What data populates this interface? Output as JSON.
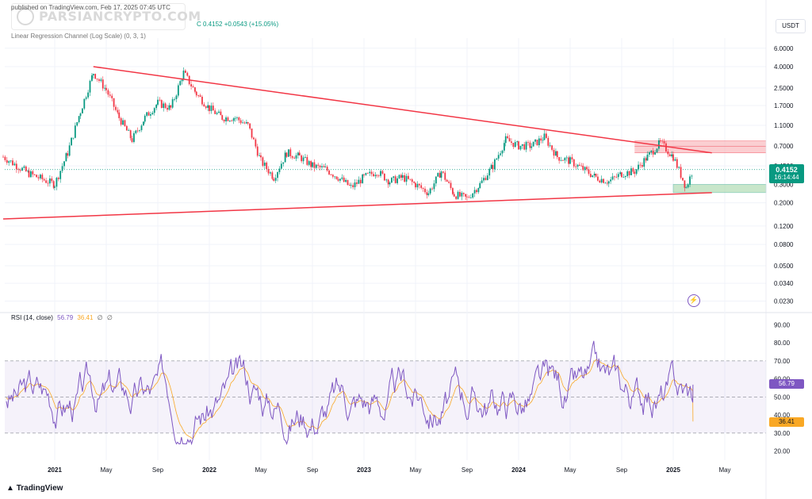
{
  "header": {
    "publish_line": "published on TradingView.com, Feb 17, 2025 07:45 UTC",
    "indicator_line": "Linear Regression Channel (Log Scale) (0, 3, 1)",
    "ohlc_text": "C 0.4152  +0.0543 (+15.05%)",
    "currency_button": "USDT",
    "watermark": "PARSIANCRYPTO.COM",
    "tv_brand": "TradingView"
  },
  "price_tag": {
    "price": "0.4152",
    "countdown": "16:14:44"
  },
  "rsi_legend": {
    "label": "RSI (14, close)",
    "rsi": "56.79",
    "ma": "36.41",
    "a": "∅",
    "b": "∅"
  },
  "rsi_tags": {
    "rsi": "56.79",
    "ma": "36.41"
  },
  "colors": {
    "up": "#089981",
    "down": "#f23645",
    "trendline": "#f23645",
    "rsi": "#7e57c2",
    "rsi_ma": "#f9a825",
    "zone_red": "#f7a5ac",
    "zone_green": "#a5d6a7",
    "grid": "#f0f3fa"
  },
  "chart_data": [
    {
      "type": "candlestick",
      "scale": "log",
      "currency": "USDT",
      "y_ticks": [
        "6.0000",
        "4.0000",
        "2.5000",
        "1.7000",
        "1.1000",
        "0.7000",
        "0.4500",
        "0.3000",
        "0.2000",
        "0.1200",
        "0.0800",
        "0.0500",
        "0.0340",
        "0.0230"
      ],
      "x_ticks": [
        "2021",
        "May",
        "Sep",
        "2022",
        "May",
        "Sep",
        "2023",
        "May",
        "Sep",
        "2024",
        "May",
        "Sep",
        "2025",
        "May"
      ],
      "last_price": 0.4152,
      "approx_close_path": [
        [
          "2020-09",
          0.55
        ],
        [
          "2020-11",
          0.38
        ],
        [
          "2021-01",
          0.3
        ],
        [
          "2021-02",
          0.6
        ],
        [
          "2021-03",
          1.5
        ],
        [
          "2021-04",
          3.5
        ],
        [
          "2021-05",
          2.4
        ],
        [
          "2021-06",
          1.3
        ],
        [
          "2021-07",
          0.8
        ],
        [
          "2021-08",
          1.3
        ],
        [
          "2021-09",
          1.8
        ],
        [
          "2021-10",
          1.6
        ],
        [
          "2021-11",
          3.5
        ],
        [
          "2021-12",
          2.2
        ],
        [
          "2022-01",
          1.6
        ],
        [
          "2022-02",
          1.3
        ],
        [
          "2022-03",
          1.3
        ],
        [
          "2022-04",
          1.1
        ],
        [
          "2022-05",
          0.5
        ],
        [
          "2022-06",
          0.35
        ],
        [
          "2022-07",
          0.6
        ],
        [
          "2022-08",
          0.55
        ],
        [
          "2022-09",
          0.45
        ],
        [
          "2022-10",
          0.42
        ],
        [
          "2022-11",
          0.35
        ],
        [
          "2022-12",
          0.28
        ],
        [
          "2023-01",
          0.35
        ],
        [
          "2023-02",
          0.4
        ],
        [
          "2023-03",
          0.32
        ],
        [
          "2023-04",
          0.35
        ],
        [
          "2023-05",
          0.3
        ],
        [
          "2023-06",
          0.25
        ],
        [
          "2023-07",
          0.4
        ],
        [
          "2023-08",
          0.24
        ],
        [
          "2023-09",
          0.22
        ],
        [
          "2023-10",
          0.3
        ],
        [
          "2023-11",
          0.45
        ],
        [
          "2023-12",
          0.8
        ],
        [
          "2024-01",
          0.7
        ],
        [
          "2024-02",
          0.7
        ],
        [
          "2024-03",
          0.85
        ],
        [
          "2024-04",
          0.55
        ],
        [
          "2024-05",
          0.5
        ],
        [
          "2024-06",
          0.42
        ],
        [
          "2024-07",
          0.35
        ],
        [
          "2024-08",
          0.32
        ],
        [
          "2024-09",
          0.38
        ],
        [
          "2024-10",
          0.4
        ],
        [
          "2024-11",
          0.55
        ],
        [
          "2024-12",
          0.75
        ],
        [
          "2025-01",
          0.55
        ],
        [
          "2025-02",
          0.28
        ],
        [
          "2025-02-17",
          0.4152
        ]
      ],
      "descending_trendline": [
        [
          "2021-04",
          4.0
        ],
        [
          "2025-04",
          0.6
        ]
      ],
      "ascending_trendline": [
        [
          "2020-09",
          0.14
        ],
        [
          "2025-04",
          0.25
        ]
      ],
      "resistance_zone": [
        0.6,
        0.78
      ],
      "support_zone": [
        0.25,
        0.3
      ]
    },
    {
      "type": "line",
      "title": "RSI (14, close)",
      "y_ticks": [
        "90.00",
        "80.00",
        "70.00",
        "60.00",
        "50.00",
        "40.00",
        "30.00",
        "20.00"
      ],
      "bands": [
        30,
        50,
        70
      ],
      "last_rsi": 56.79,
      "last_ma": 36.41
    }
  ]
}
